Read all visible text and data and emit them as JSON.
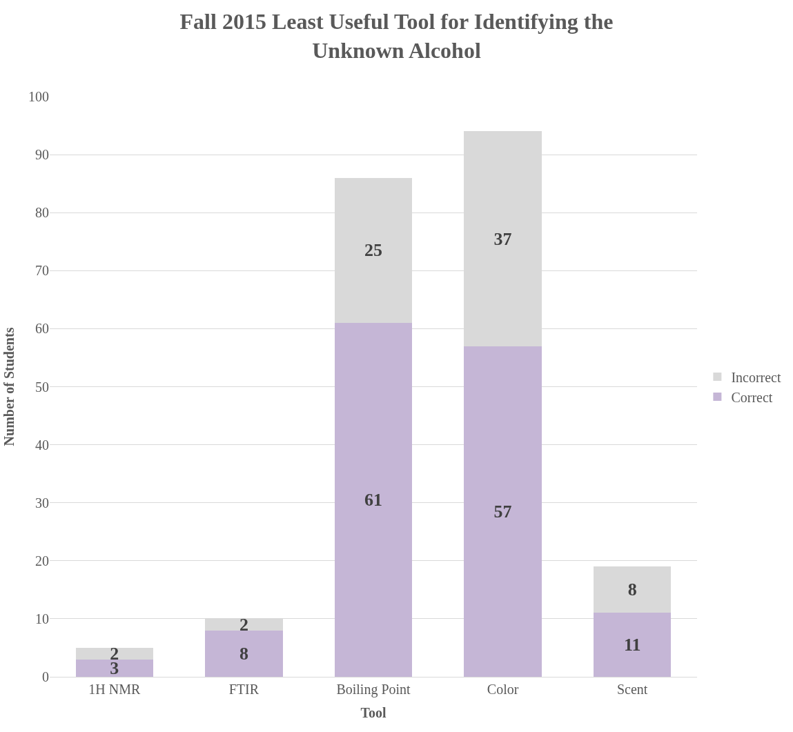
{
  "chart_data": {
    "type": "bar",
    "title": "Fall 2015 Least Useful Tool for Identifying the Unknown Alcohol",
    "xlabel": "Tool",
    "ylabel": "Number of Students",
    "categories": [
      "1H NMR",
      "FTIR",
      "Boiling Point",
      "Color",
      "Scent"
    ],
    "series": [
      {
        "name": "Correct",
        "color": "#c5b6d6",
        "values": [
          3,
          8,
          61,
          57,
          11
        ]
      },
      {
        "name": "Incorrect",
        "color": "#d9d9d9",
        "values": [
          2,
          2,
          25,
          37,
          8
        ]
      }
    ],
    "stacked": true,
    "data_labels": true,
    "ylim": [
      0,
      100
    ],
    "yticks": [
      0,
      10,
      20,
      30,
      40,
      50,
      60,
      70,
      80,
      90,
      100
    ],
    "grid": "y",
    "legend": "right"
  }
}
